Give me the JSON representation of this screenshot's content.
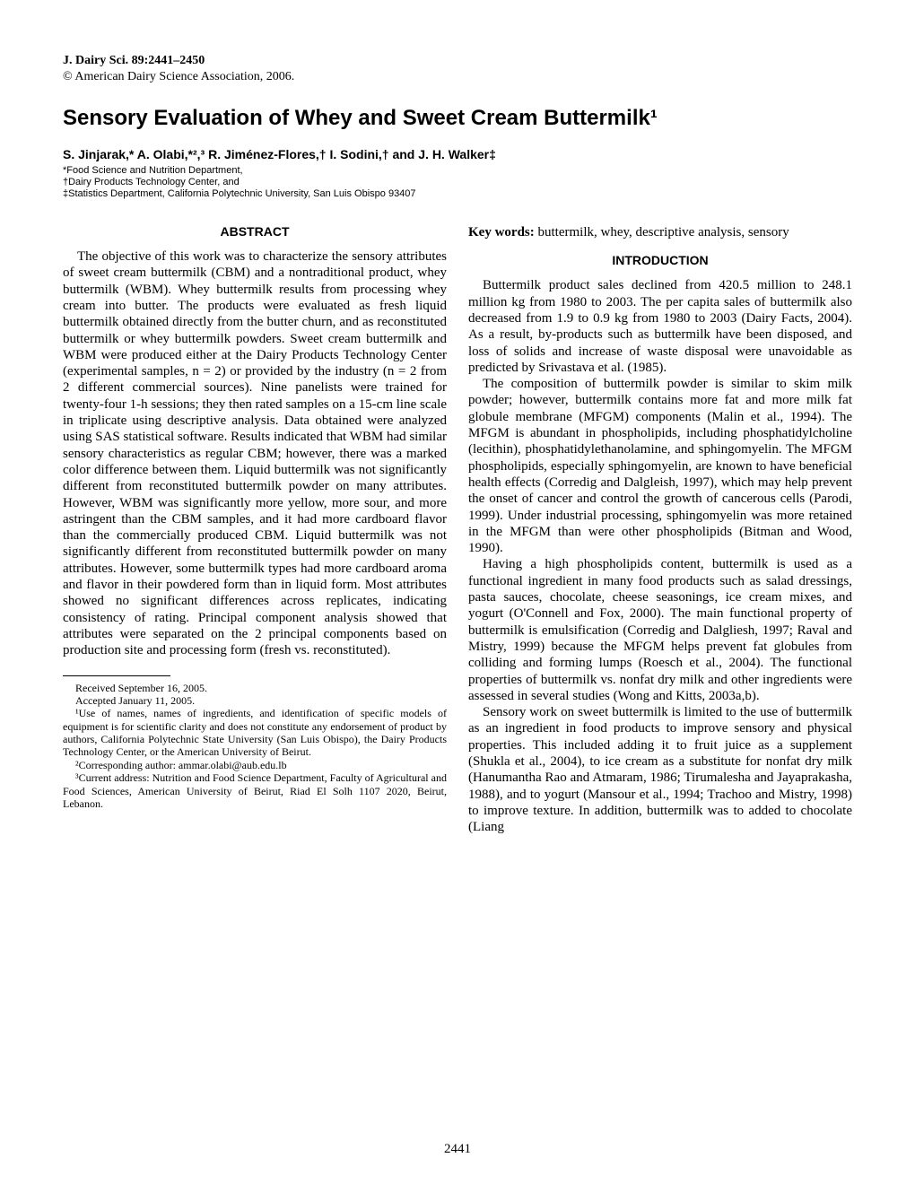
{
  "header": {
    "journal_info": "J. Dairy Sci. 89:2441–2450",
    "copyright": "© American Dairy Science Association, 2006."
  },
  "title": "Sensory Evaluation of Whey and Sweet Cream Buttermilk¹",
  "authors": "S. Jinjarak,* A. Olabi,*²,³ R. Jiménez-Flores,† I. Sodini,† and J. H. Walker‡",
  "affiliations": [
    "*Food Science and Nutrition Department,",
    "†Dairy Products Technology Center, and",
    "‡Statistics Department, California Polytechnic University, San Luis Obispo 93407"
  ],
  "left_column": {
    "abstract_heading": "ABSTRACT",
    "abstract_text": "The objective of this work was to characterize the sensory attributes of sweet cream buttermilk (CBM) and a nontraditional product, whey buttermilk (WBM). Whey buttermilk results from processing whey cream into butter. The products were evaluated as fresh liquid buttermilk obtained directly from the butter churn, and as reconstituted buttermilk or whey buttermilk powders. Sweet cream buttermilk and WBM were produced either at the Dairy Products Technology Center (experimental samples, n = 2) or provided by the industry (n = 2 from 2 different commercial sources). Nine panelists were trained for twenty-four 1-h sessions; they then rated samples on a 15-cm line scale in triplicate using descriptive analysis. Data obtained were analyzed using SAS statistical software. Results indicated that WBM had similar sensory characteristics as regular CBM; however, there was a marked color difference between them. Liquid buttermilk was not significantly different from reconstituted buttermilk powder on many attributes. However, WBM was significantly more yellow, more sour, and more astringent than the CBM samples, and it had more cardboard flavor than the commercially produced CBM. Liquid buttermilk was not significantly different from reconstituted buttermilk powder on many attributes. However, some buttermilk types had more cardboard aroma and flavor in their powdered form than in liquid form. Most attributes showed no significant differences across replicates, indicating consistency of rating. Principal component analysis showed that attributes were separated on the 2 principal components based on production site and processing form (fresh vs. reconstituted).",
    "footnotes": [
      "Received September 16, 2005.",
      "Accepted January 11, 2005.",
      "¹Use of names, names of ingredients, and identification of specific models of equipment is for scientific clarity and does not constitute any endorsement of product by authors, California Polytechnic State University (San Luis Obispo), the Dairy Products Technology Center, or the American University of Beirut.",
      "²Corresponding author: ammar.olabi@aub.edu.lb",
      "³Current address: Nutrition and Food Science Department, Faculty of Agricultural and Food Sciences, American University of Beirut, Riad El Solh 1107 2020, Beirut, Lebanon."
    ]
  },
  "right_column": {
    "keywords_label": "Key words:",
    "keywords_text": " buttermilk, whey, descriptive analysis, sensory",
    "intro_heading": "INTRODUCTION",
    "paragraphs": [
      "Buttermilk product sales declined from 420.5 million to 248.1 million kg from 1980 to 2003. The per capita sales of buttermilk also decreased from 1.9 to 0.9 kg from 1980 to 2003 (Dairy Facts, 2004). As a result, by-products such as buttermilk have been disposed, and loss of solids and increase of waste disposal were unavoidable as predicted by Srivastava et al. (1985).",
      "The composition of buttermilk powder is similar to skim milk powder; however, buttermilk contains more fat and more milk fat globule membrane (MFGM) components (Malin et al., 1994). The MFGM is abundant in phospholipids, including phosphatidylcholine (lecithin), phosphatidylethanolamine, and sphingomyelin. The MFGM phospholipids, especially sphingomyelin, are known to have beneficial health effects (Corredig and Dalgleish, 1997), which may help prevent the onset of cancer and control the growth of cancerous cells (Parodi, 1999). Under industrial processing, sphingomyelin was more retained in the MFGM than were other phospholipids (Bitman and Wood, 1990).",
      "Having a high phospholipids content, buttermilk is used as a functional ingredient in many food products such as salad dressings, pasta sauces, chocolate, cheese seasonings, ice cream mixes, and yogurt (O'Connell and Fox, 2000). The main functional property of buttermilk is emulsification (Corredig and Dalgliesh, 1997; Raval and Mistry, 1999) because the MFGM helps prevent fat globules from colliding and forming lumps (Roesch et al., 2004). The functional properties of buttermilk vs. nonfat dry milk and other ingredients were assessed in several studies (Wong and Kitts, 2003a,b).",
      "Sensory work on sweet buttermilk is limited to the use of buttermilk as an ingredient in food products to improve sensory and physical properties. This included adding it to fruit juice as a supplement (Shukla et al., 2004), to ice cream as a substitute for nonfat dry milk (Hanumantha Rao and Atmaram, 1986; Tirumalesha and Jayaprakasha, 1988), and to yogurt (Mansour et al., 1994; Trachoo and Mistry, 1998) to improve texture. In addition, buttermilk was to added to chocolate (Liang"
    ]
  },
  "page_number": "2441",
  "styling": {
    "body_width": 1020,
    "body_height": 1320,
    "background_color": "#ffffff",
    "text_color": "#000000",
    "body_font": "Times New Roman",
    "heading_font": "Arial",
    "title_fontsize": 24,
    "body_fontsize": 15,
    "affiliation_fontsize": 11,
    "footnote_fontsize": 12,
    "section_heading_fontsize": 14,
    "column_gap": 24,
    "padding": "60px 70px 40px 70px"
  }
}
